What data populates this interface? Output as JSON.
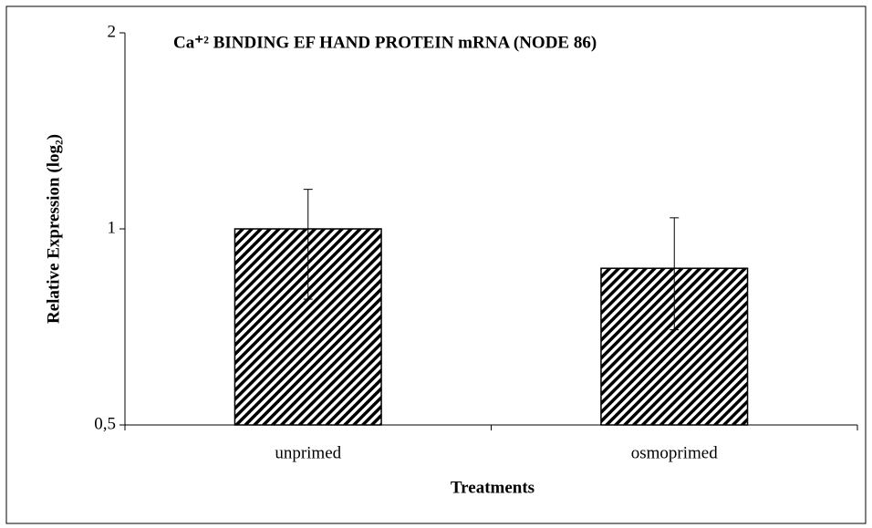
{
  "chart_data": {
    "type": "bar",
    "title": "Ca⁺²  BINDING EF HAND PROTEIN mRNA (NODE 86)",
    "x_label": "Treatments",
    "y_label": "Relative Expression (log₂)",
    "categories": [
      "unprimed",
      "osmoprimed"
    ],
    "values": [
      1.0,
      0.87
    ],
    "error_plus": [
      0.15,
      0.17
    ],
    "error_minus": [
      0.22,
      0.17
    ],
    "color": "#000000",
    "yscale": "log2",
    "ylim": [
      0.5,
      2
    ],
    "yticks": [
      {
        "value": 0.5,
        "label": "0,5"
      },
      1,
      2
    ],
    "grid": false
  }
}
